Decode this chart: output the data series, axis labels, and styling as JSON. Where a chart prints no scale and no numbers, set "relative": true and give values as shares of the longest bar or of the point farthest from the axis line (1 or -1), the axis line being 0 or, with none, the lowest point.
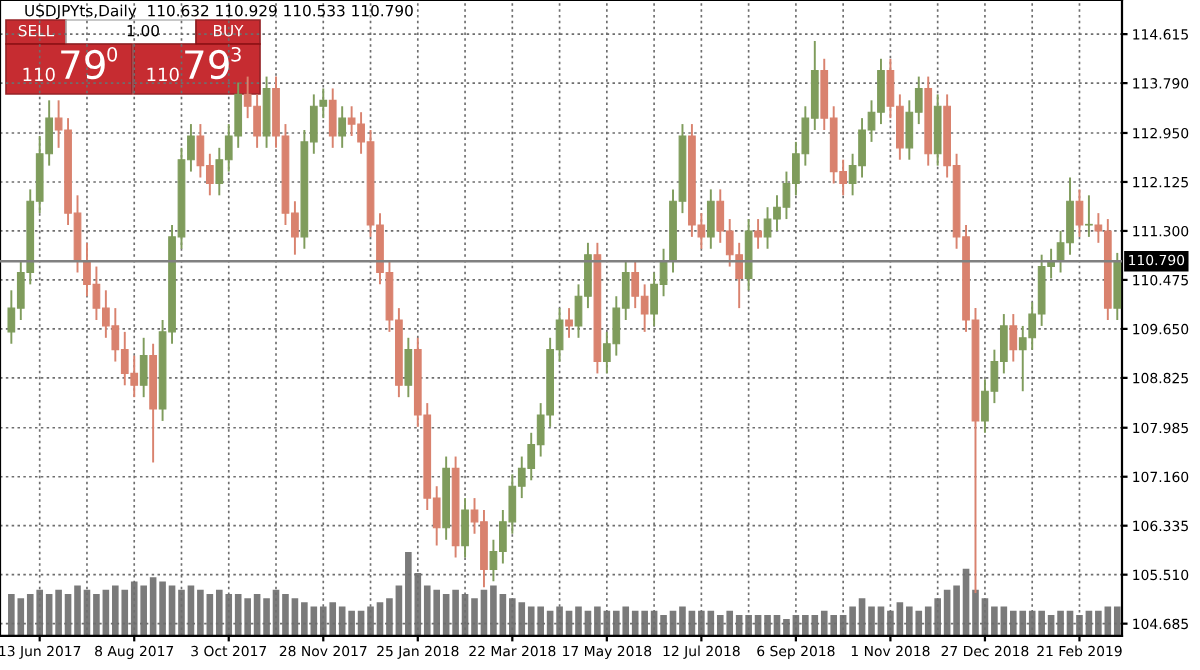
{
  "chart_data": [
    {
      "type": "candlestick",
      "title": "USDJPYts,Daily  110.632 110.929 110.533 110.790",
      "annotations": [
        "SELL",
        "1.00",
        "BUY",
        "110",
        "79",
        "0",
        "110",
        "79",
        "3"
      ],
      "categories": [
        null,
        null,
        null,
        "13 Jun 2017",
        null,
        null,
        null,
        null,
        null,
        null,
        null,
        null,
        null,
        "8 Aug 2017",
        null,
        null,
        null,
        null,
        null,
        null,
        null,
        null,
        null,
        "3 Oct 2017",
        null,
        null,
        null,
        null,
        null,
        null,
        null,
        null,
        null,
        "28 Nov 2017",
        null,
        null,
        null,
        null,
        null,
        null,
        null,
        null,
        null,
        "25 Jan 2018",
        null,
        null,
        null,
        null,
        null,
        null,
        null,
        null,
        null,
        "22 Mar 2018",
        null,
        null,
        null,
        null,
        null,
        null,
        null,
        null,
        null,
        "17 May 2018",
        null,
        null,
        null,
        null,
        null,
        null,
        null,
        null,
        null,
        "12 Jul 2018",
        null,
        null,
        null,
        null,
        null,
        null,
        null,
        null,
        null,
        "6 Sep 2018",
        null,
        null,
        null,
        null,
        null,
        null,
        null,
        null,
        null,
        "1 Nov 2018",
        null,
        null,
        null,
        null,
        null,
        null,
        null,
        null,
        null,
        "27 Dec 2018",
        null,
        null,
        null,
        null,
        null,
        null,
        null,
        null,
        null,
        "21 Feb 2019",
        null,
        null,
        null,
        null
      ],
      "ohlc": [
        [
          109.6,
          110.3,
          109.4,
          110.0
        ],
        [
          110.0,
          110.8,
          109.8,
          110.6
        ],
        [
          110.6,
          112.0,
          110.4,
          111.8
        ],
        [
          111.8,
          112.9,
          111.6,
          112.6
        ],
        [
          112.6,
          113.5,
          112.4,
          113.2
        ],
        [
          113.2,
          113.5,
          112.7,
          113.0
        ],
        [
          113.0,
          113.2,
          111.4,
          111.6
        ],
        [
          111.6,
          111.9,
          110.6,
          110.8
        ],
        [
          110.8,
          111.1,
          110.2,
          110.4
        ],
        [
          110.4,
          110.7,
          109.8,
          110.0
        ],
        [
          110.0,
          110.3,
          109.5,
          109.7
        ],
        [
          109.7,
          110.0,
          109.1,
          109.3
        ],
        [
          109.3,
          109.6,
          108.7,
          108.9
        ],
        [
          108.9,
          109.2,
          108.5,
          108.7
        ],
        [
          108.7,
          109.5,
          108.5,
          109.2
        ],
        [
          109.2,
          109.4,
          107.4,
          108.3
        ],
        [
          108.3,
          109.8,
          108.1,
          109.6
        ],
        [
          109.6,
          111.4,
          109.4,
          111.2
        ],
        [
          111.2,
          112.7,
          111.0,
          112.5
        ],
        [
          112.5,
          113.1,
          112.3,
          112.9
        ],
        [
          112.9,
          113.1,
          112.2,
          112.4
        ],
        [
          112.4,
          112.6,
          111.9,
          112.1
        ],
        [
          112.1,
          112.7,
          111.9,
          112.5
        ],
        [
          112.5,
          113.1,
          112.3,
          112.9
        ],
        [
          112.9,
          113.8,
          112.7,
          113.6
        ],
        [
          113.6,
          113.9,
          113.2,
          113.4
        ],
        [
          113.4,
          113.6,
          112.7,
          112.9
        ],
        [
          112.9,
          113.9,
          112.7,
          113.7
        ],
        [
          113.7,
          113.9,
          112.7,
          112.9
        ],
        [
          112.9,
          113.1,
          111.4,
          111.6
        ],
        [
          111.6,
          111.8,
          110.9,
          111.2
        ],
        [
          111.2,
          113.0,
          111.0,
          112.8
        ],
        [
          112.8,
          113.6,
          112.6,
          113.4
        ],
        [
          113.4,
          113.7,
          113.2,
          113.5
        ],
        [
          113.5,
          113.7,
          112.7,
          112.9
        ],
        [
          112.9,
          113.4,
          112.7,
          113.2
        ],
        [
          113.2,
          113.4,
          112.9,
          113.1
        ],
        [
          113.1,
          113.3,
          112.6,
          112.8
        ],
        [
          112.8,
          113.0,
          111.2,
          111.4
        ],
        [
          111.4,
          111.6,
          110.4,
          110.6
        ],
        [
          110.6,
          110.8,
          109.6,
          109.8
        ],
        [
          109.8,
          110.0,
          108.5,
          108.7
        ],
        [
          108.7,
          109.5,
          108.5,
          109.3
        ],
        [
          109.3,
          109.5,
          108.0,
          108.2
        ],
        [
          108.2,
          108.4,
          106.6,
          106.8
        ],
        [
          106.8,
          107.0,
          106.0,
          106.3
        ],
        [
          106.3,
          107.5,
          106.1,
          107.3
        ],
        [
          107.3,
          107.5,
          105.8,
          106.0
        ],
        [
          106.0,
          106.8,
          105.8,
          106.6
        ],
        [
          106.6,
          106.8,
          106.2,
          106.4
        ],
        [
          106.4,
          106.6,
          105.3,
          105.6
        ],
        [
          105.6,
          106.1,
          105.4,
          105.9
        ],
        [
          105.9,
          106.6,
          105.7,
          106.4
        ],
        [
          106.4,
          107.2,
          106.2,
          107.0
        ],
        [
          107.0,
          107.5,
          106.8,
          107.3
        ],
        [
          107.3,
          107.9,
          107.1,
          107.7
        ],
        [
          107.7,
          108.4,
          107.5,
          108.2
        ],
        [
          108.2,
          109.5,
          108.0,
          109.3
        ],
        [
          109.3,
          110.0,
          109.1,
          109.8
        ],
        [
          109.8,
          110.0,
          109.5,
          109.7
        ],
        [
          109.7,
          110.4,
          109.5,
          110.2
        ],
        [
          110.2,
          111.1,
          110.0,
          110.9
        ],
        [
          110.9,
          111.1,
          108.9,
          109.1
        ],
        [
          109.1,
          109.6,
          108.9,
          109.4
        ],
        [
          109.4,
          110.2,
          109.2,
          110.0
        ],
        [
          110.0,
          110.8,
          109.8,
          110.6
        ],
        [
          110.6,
          110.8,
          110.0,
          110.2
        ],
        [
          110.2,
          110.4,
          109.6,
          109.9
        ],
        [
          109.9,
          110.6,
          109.7,
          110.4
        ],
        [
          110.4,
          111.0,
          110.2,
          110.8
        ],
        [
          110.8,
          112.0,
          110.6,
          111.8
        ],
        [
          111.8,
          113.1,
          111.6,
          112.9
        ],
        [
          112.9,
          113.1,
          111.2,
          111.4
        ],
        [
          111.4,
          111.6,
          111.0,
          111.2
        ],
        [
          111.2,
          112.0,
          111.0,
          111.8
        ],
        [
          111.8,
          112.0,
          111.1,
          111.3
        ],
        [
          111.3,
          111.5,
          110.7,
          110.9
        ],
        [
          110.9,
          111.1,
          110.0,
          110.5
        ],
        [
          110.5,
          111.5,
          110.3,
          111.3
        ],
        [
          111.3,
          111.5,
          111.0,
          111.2
        ],
        [
          111.2,
          111.7,
          111.0,
          111.5
        ],
        [
          111.5,
          111.9,
          111.3,
          111.7
        ],
        [
          111.7,
          112.3,
          111.5,
          112.1
        ],
        [
          112.1,
          112.8,
          111.9,
          112.6
        ],
        [
          112.6,
          113.4,
          112.4,
          113.2
        ],
        [
          113.2,
          114.5,
          113.0,
          114.0
        ],
        [
          114.0,
          114.2,
          113.0,
          113.2
        ],
        [
          113.2,
          113.4,
          112.1,
          112.3
        ],
        [
          112.3,
          112.5,
          111.9,
          112.1
        ],
        [
          112.1,
          112.6,
          111.9,
          112.4
        ],
        [
          112.4,
          113.2,
          112.2,
          113.0
        ],
        [
          113.0,
          113.5,
          112.8,
          113.3
        ],
        [
          113.3,
          114.2,
          113.1,
          114.0
        ],
        [
          114.0,
          114.2,
          113.2,
          113.4
        ],
        [
          113.4,
          113.6,
          112.5,
          112.7
        ],
        [
          112.7,
          113.5,
          112.5,
          113.3
        ],
        [
          113.3,
          113.9,
          113.1,
          113.7
        ],
        [
          113.7,
          113.9,
          112.4,
          112.6
        ],
        [
          112.6,
          113.6,
          112.4,
          113.4
        ],
        [
          113.4,
          113.6,
          112.2,
          112.4
        ],
        [
          112.4,
          112.6,
          111.0,
          111.2
        ],
        [
          111.2,
          111.4,
          109.6,
          109.8
        ],
        [
          109.8,
          110.0,
          105.2,
          108.1
        ],
        [
          108.1,
          108.8,
          107.9,
          108.6
        ],
        [
          108.6,
          109.3,
          108.4,
          109.1
        ],
        [
          109.1,
          109.9,
          108.9,
          109.7
        ],
        [
          109.7,
          109.9,
          109.1,
          109.3
        ],
        [
          109.3,
          109.7,
          108.6,
          109.5
        ],
        [
          109.5,
          110.1,
          109.3,
          109.9
        ],
        [
          109.9,
          110.9,
          109.7,
          110.7
        ],
        [
          110.7,
          111.0,
          110.5,
          110.8
        ],
        [
          110.8,
          111.3,
          110.6,
          111.1
        ],
        [
          111.1,
          112.2,
          110.9,
          111.8
        ],
        [
          111.8,
          112.0,
          111.2,
          111.4
        ],
        [
          111.4,
          111.9,
          111.2,
          111.4
        ],
        [
          111.4,
          111.6,
          111.1,
          111.3
        ],
        [
          111.3,
          111.5,
          109.8,
          110.0
        ],
        [
          110.0,
          110.93,
          109.8,
          110.79
        ]
      ],
      "colors": [
        "#7f9c5c",
        "#7f9c5c",
        "#7f9c5c",
        "#7f9c5c",
        "#7f9c5c",
        "#d9826e",
        "#d9826e",
        "#d9826e",
        "#d9826e",
        "#d9826e",
        "#d9826e",
        "#d9826e",
        "#d9826e",
        "#d9826e",
        "#7f9c5c",
        "#d9826e",
        "#7f9c5c",
        "#7f9c5c",
        "#7f9c5c",
        "#7f9c5c",
        "#d9826e",
        "#d9826e",
        "#7f9c5c",
        "#7f9c5c",
        "#7f9c5c",
        "#d9826e",
        "#d9826e",
        "#7f9c5c",
        "#d9826e",
        "#d9826e",
        "#d9826e",
        "#7f9c5c",
        "#7f9c5c",
        "#7f9c5c",
        "#d9826e",
        "#7f9c5c",
        "#d9826e",
        "#d9826e",
        "#d9826e",
        "#d9826e",
        "#d9826e",
        "#d9826e",
        "#7f9c5c",
        "#d9826e",
        "#d9826e",
        "#d9826e",
        "#7f9c5c",
        "#d9826e",
        "#7f9c5c",
        "#d9826e",
        "#d9826e",
        "#7f9c5c",
        "#7f9c5c",
        "#7f9c5c",
        "#7f9c5c",
        "#7f9c5c",
        "#7f9c5c",
        "#7f9c5c",
        "#7f9c5c",
        "#d9826e",
        "#7f9c5c",
        "#7f9c5c",
        "#d9826e",
        "#7f9c5c",
        "#7f9c5c",
        "#7f9c5c",
        "#d9826e",
        "#d9826e",
        "#7f9c5c",
        "#7f9c5c",
        "#7f9c5c",
        "#7f9c5c",
        "#d9826e",
        "#d9826e",
        "#7f9c5c",
        "#d9826e",
        "#d9826e",
        "#d9826e",
        "#7f9c5c",
        "#d9826e",
        "#7f9c5c",
        "#7f9c5c",
        "#7f9c5c",
        "#7f9c5c",
        "#7f9c5c",
        "#7f9c5c",
        "#d9826e",
        "#d9826e",
        "#d9826e",
        "#7f9c5c",
        "#7f9c5c",
        "#7f9c5c",
        "#7f9c5c",
        "#d9826e",
        "#d9826e",
        "#7f9c5c",
        "#7f9c5c",
        "#d9826e",
        "#7f9c5c",
        "#d9826e",
        "#d9826e",
        "#d9826e",
        "#d9826e",
        "#7f9c5c",
        "#7f9c5c",
        "#7f9c5c",
        "#d9826e",
        "#7f9c5c",
        "#7f9c5c",
        "#7f9c5c",
        "#7f9c5c",
        "#7f9c5c",
        "#7f9c5c",
        "#d9826e",
        "#7f9c5c",
        "#d9826e",
        "#d9826e",
        "#7f9c5c"
      ],
      "ylim": [
        104.48,
        115.19
      ],
      "yticks": [
        104.685,
        {
          "value": 105.51,
          "label": "105.510"
        },
        106.335,
        {
          "value": 107.16,
          "label": "107.160"
        },
        107.985,
        108.825,
        {
          "value": 109.65,
          "label": "109.650"
        },
        110.475,
        {
          "value": 111.3,
          "label": "111.300"
        },
        112.125,
        {
          "value": 112.95,
          "label": "112.950"
        },
        {
          "value": 113.79,
          "label": "113.790"
        },
        114.615
      ],
      "ref_lines": [
        {
          "axis": "y",
          "value": 110.79,
          "label": "110.790",
          "color": "#808080"
        }
      ],
      "grid": true
    },
    {
      "type": "bar",
      "relative": true,
      "categories": [
        null,
        null,
        null,
        null,
        null,
        null,
        null,
        null,
        null,
        null,
        null,
        null,
        null,
        null,
        null,
        null,
        null,
        null,
        null,
        null,
        null,
        null,
        null,
        null,
        null,
        null,
        null,
        null,
        null,
        null,
        null,
        null,
        null,
        null,
        null,
        null,
        null,
        null,
        null,
        null,
        null,
        null,
        null,
        null,
        null,
        null,
        null,
        null,
        null,
        null,
        null,
        null,
        null,
        null,
        null,
        null,
        null,
        null,
        null,
        null,
        null,
        null,
        null,
        null,
        null,
        null,
        null,
        null,
        null,
        null,
        null,
        null,
        null,
        null,
        null,
        null,
        null,
        null,
        null,
        null,
        null,
        null,
        null,
        null,
        null,
        null,
        null,
        null,
        null,
        null,
        null,
        null,
        null,
        null,
        null,
        null,
        null,
        null,
        null,
        null,
        null,
        null,
        null,
        null,
        null,
        null,
        null,
        null,
        null,
        null,
        null,
        null,
        null,
        null,
        null,
        null,
        null,
        null
      ],
      "series": [
        {
          "color": "#7a7a7a",
          "values": [
            0.5,
            0.45,
            0.5,
            0.55,
            0.5,
            0.55,
            0.5,
            0.6,
            0.55,
            0.5,
            0.55,
            0.6,
            0.55,
            0.65,
            0.6,
            0.7,
            0.65,
            0.6,
            0.55,
            0.6,
            0.55,
            0.5,
            0.55,
            0.5,
            0.5,
            0.45,
            0.5,
            0.45,
            0.55,
            0.5,
            0.45,
            0.4,
            0.35,
            0.35,
            0.4,
            0.35,
            0.3,
            0.3,
            0.35,
            0.4,
            0.45,
            0.6,
            1.0,
            0.75,
            0.6,
            0.55,
            0.5,
            0.55,
            0.5,
            0.45,
            0.55,
            0.6,
            0.5,
            0.45,
            0.4,
            0.35,
            0.35,
            0.3,
            0.35,
            0.3,
            0.35,
            0.3,
            0.35,
            0.3,
            0.3,
            0.35,
            0.3,
            0.3,
            0.3,
            0.25,
            0.3,
            0.35,
            0.3,
            0.3,
            0.3,
            0.25,
            0.3,
            0.25,
            0.25,
            0.25,
            0.25,
            0.25,
            0.2,
            0.25,
            0.25,
            0.25,
            0.3,
            0.25,
            0.25,
            0.35,
            0.45,
            0.35,
            0.35,
            0.3,
            0.4,
            0.35,
            0.3,
            0.35,
            0.45,
            0.55,
            0.6,
            0.8,
            0.55,
            0.45,
            0.35,
            0.35,
            0.3,
            0.3,
            0.3,
            0.3,
            0.25,
            0.3,
            0.3,
            0.25,
            0.3,
            0.3,
            0.35,
            0.35
          ]
        }
      ]
    }
  ]
}
